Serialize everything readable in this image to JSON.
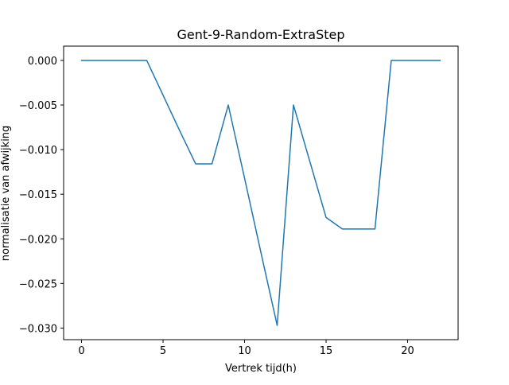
{
  "chart_data": {
    "type": "line",
    "title": "Gent-9-Random-ExtraStep",
    "xlabel": "Vertrek tijd(h)",
    "ylabel": "normalisatie van afwijking",
    "xlim": [
      -1.1,
      23.1
    ],
    "ylim": [
      -0.0313,
      0.0016
    ],
    "x_ticks": [
      0,
      5,
      10,
      15,
      20
    ],
    "y_ticks": [
      0.0,
      -0.005,
      -0.01,
      -0.015,
      -0.02,
      -0.025,
      -0.03
    ],
    "x_tick_labels": [
      "0",
      "5",
      "10",
      "15",
      "20"
    ],
    "y_tick_labels": [
      "0.000",
      "−0.005",
      "−0.010",
      "−0.015",
      "−0.020",
      "−0.025",
      "−0.030"
    ],
    "grid": false,
    "series": [
      {
        "color": "#1f77b4",
        "x": [
          0,
          1,
          2,
          3,
          4,
          5,
          6,
          7,
          8,
          9,
          10,
          11,
          12,
          13,
          14,
          15,
          16,
          17,
          18,
          19,
          20,
          21,
          22
        ],
        "y": [
          0.0,
          0.0,
          0.0,
          0.0,
          0.0,
          -0.0039,
          -0.0078,
          -0.0116,
          -0.0116,
          -0.005,
          -0.0132,
          -0.0215,
          -0.0297,
          -0.005,
          -0.0113,
          -0.0176,
          -0.0189,
          -0.0189,
          -0.0189,
          0.0,
          0.0,
          0.0,
          0.0
        ]
      }
    ]
  }
}
